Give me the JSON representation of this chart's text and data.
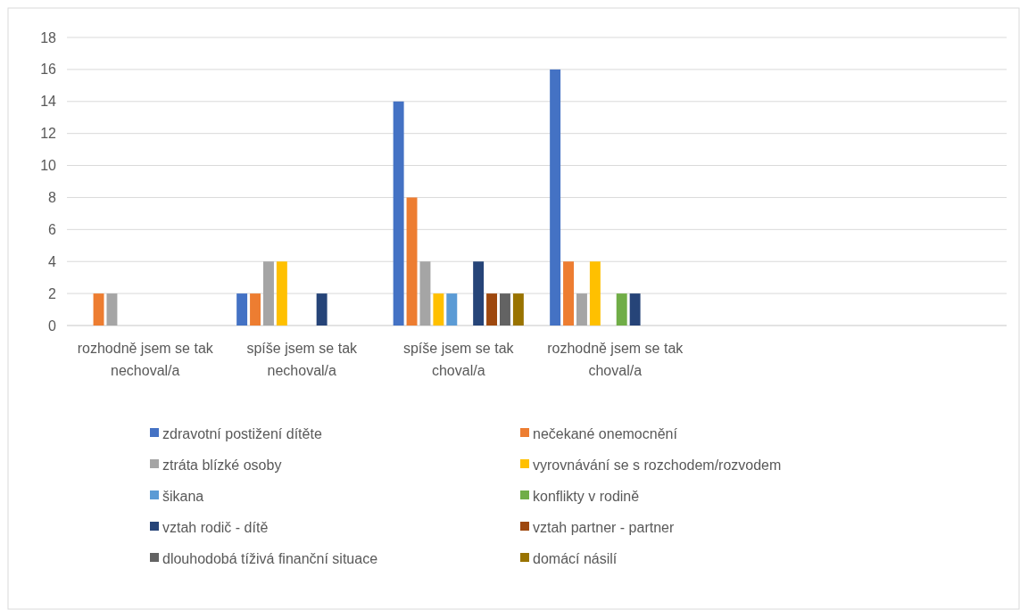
{
  "chart_data": {
    "type": "bar",
    "categories": [
      "rozhodně jsem se tak nechoval/a",
      "spíše jsem se tak nechoval/a",
      "spíše jsem se tak choval/a",
      "rozhodně jsem se tak choval/a",
      null,
      null
    ],
    "series": [
      {
        "name": "zdravotní postižení dítěte",
        "color": "#4472c4",
        "values": [
          0,
          2,
          14,
          16,
          0,
          0
        ]
      },
      {
        "name": "nečekané onemocnění",
        "color": "#ed7d31",
        "values": [
          2,
          2,
          8,
          4,
          0,
          0
        ]
      },
      {
        "name": "ztráta blízké osoby",
        "color": "#a5a5a5",
        "values": [
          2,
          4,
          4,
          2,
          0,
          0
        ]
      },
      {
        "name": "vyrovnávání se s rozchodem/rozvodem",
        "color": "#ffc000",
        "values": [
          0,
          4,
          2,
          4,
          0,
          0
        ]
      },
      {
        "name": "šikana",
        "color": "#5b9bd5",
        "values": [
          0,
          0,
          2,
          0,
          0,
          0
        ]
      },
      {
        "name": "konflikty v rodině",
        "color": "#70ad47",
        "values": [
          0,
          0,
          0,
          2,
          0,
          0
        ]
      },
      {
        "name": "vztah rodič - dítě",
        "color": "#264478",
        "values": [
          0,
          2,
          4,
          2,
          0,
          0
        ]
      },
      {
        "name": "vztah partner - partner",
        "color": "#9e480e",
        "values": [
          0,
          0,
          2,
          0,
          0,
          0
        ]
      },
      {
        "name": "dlouhodobá tíživá finanční situace",
        "color": "#636363",
        "values": [
          0,
          0,
          2,
          0,
          0,
          0
        ]
      },
      {
        "name": "domácí násilí",
        "color": "#997300",
        "values": [
          0,
          0,
          2,
          0,
          0,
          0
        ]
      }
    ],
    "ylim": [
      0,
      18
    ],
    "yticks": [
      0,
      2,
      4,
      6,
      8,
      10,
      12,
      14,
      16,
      18
    ],
    "grid": "y",
    "legend": "bottom"
  }
}
